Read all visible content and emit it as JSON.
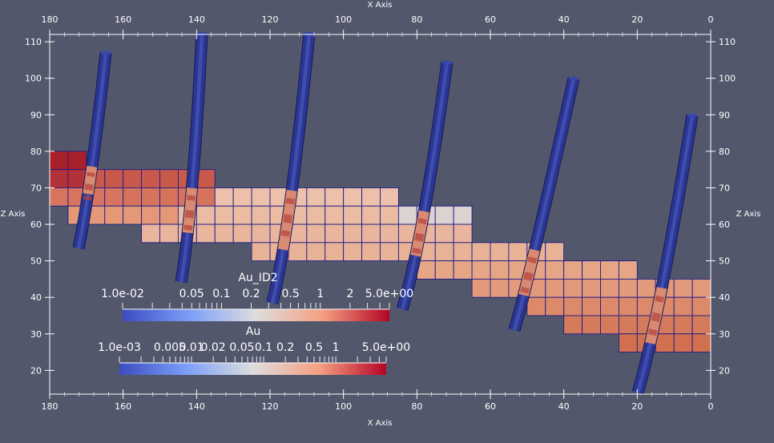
{
  "axes": {
    "x_title": "X Axis",
    "z_title": "Z Axis",
    "x_ticks": [
      "180",
      "160",
      "140",
      "120",
      "100",
      "80",
      "60",
      "40",
      "20",
      "0"
    ],
    "z_ticks": [
      "110",
      "100",
      "90",
      "80",
      "70",
      "60",
      "50",
      "40",
      "30",
      "20"
    ],
    "x_range": [
      180,
      0
    ],
    "z_range": [
      13.5,
      112
    ]
  },
  "colors": {
    "background": "#52576b",
    "axis": "#ffffff",
    "tube": "#26308c",
    "cell_outline": "#1c1c8a",
    "colormap_low": "#3b4cc0",
    "colormap_mid": "#dddddd",
    "colormap_high": "#b40426"
  },
  "legend_au_id2": {
    "title": "Au_ID2",
    "labels": [
      "1.0e-02",
      "0.05",
      "0.1",
      "0.2",
      "0.5",
      "1",
      "2",
      "5.0e+00"
    ],
    "range": [
      0.01,
      5
    ],
    "scale": "log"
  },
  "legend_au": {
    "title": "Au",
    "labels": [
      "1.0e-03",
      "0.005",
      "0.01",
      "0.02",
      "0.05",
      "0.1",
      "0.2",
      "0.5",
      "1",
      "5.0e+00"
    ],
    "range": [
      0.001,
      5
    ],
    "scale": "log"
  }
}
